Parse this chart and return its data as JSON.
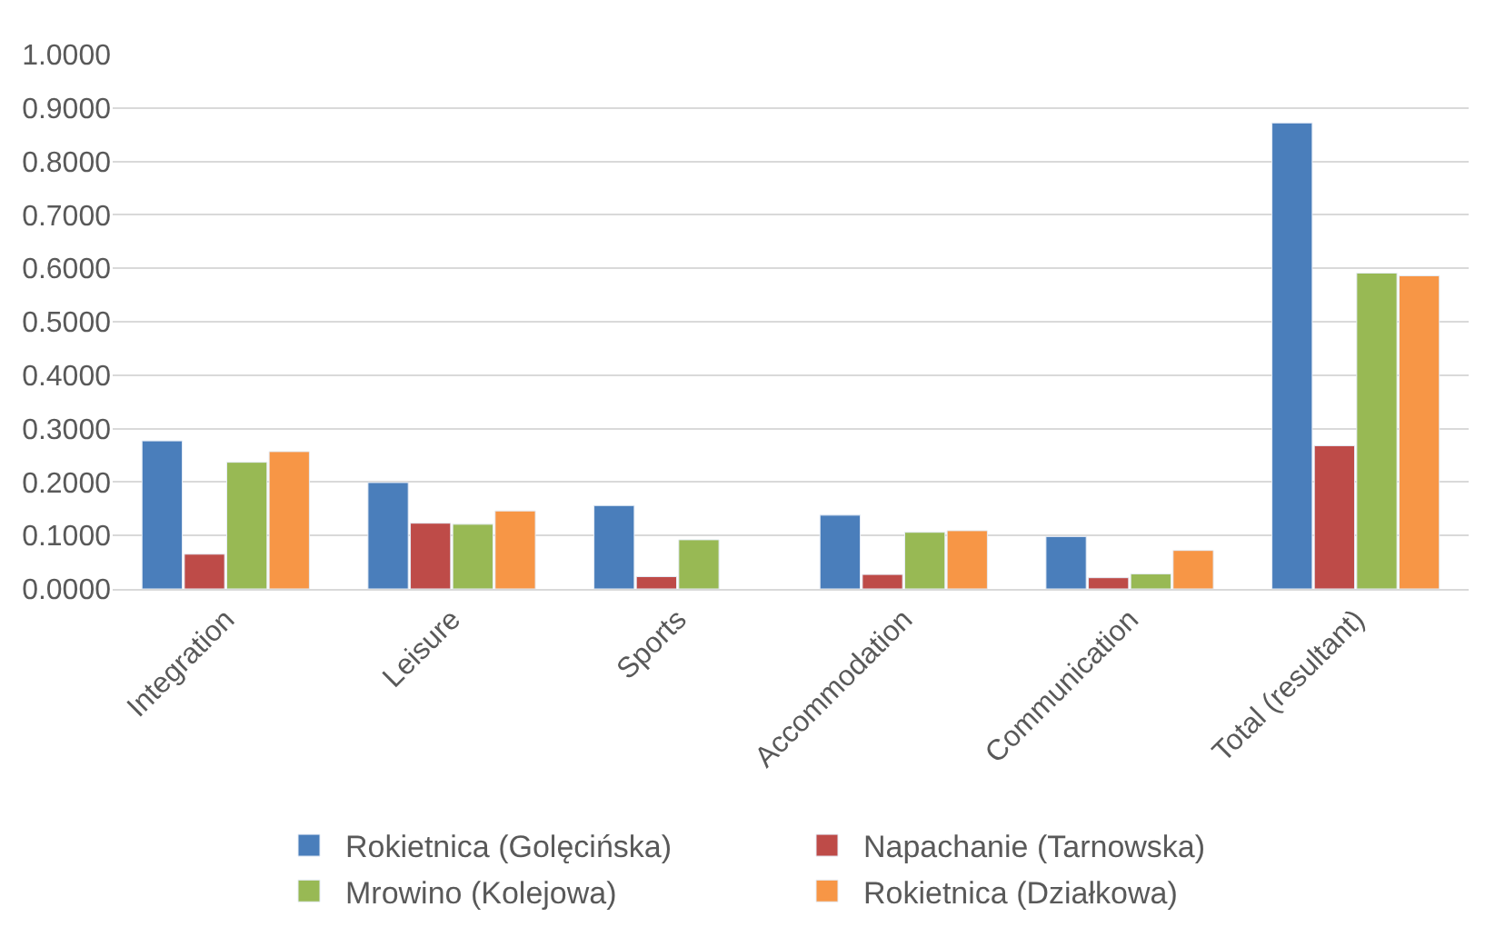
{
  "chart_data": {
    "type": "bar",
    "categories": [
      "Integration",
      "Leisure",
      "Sports",
      "Accommodation",
      "Communication",
      "Total (resultant)"
    ],
    "series": [
      {
        "name": "Rokietnica (Golęcińska)",
        "color": "#4a7ebb",
        "values": [
          0.277,
          0.199,
          0.156,
          0.138,
          0.098,
          0.872
        ]
      },
      {
        "name": "Napachanie (Tarnowska)",
        "color": "#be4b48",
        "values": [
          0.065,
          0.123,
          0.023,
          0.027,
          0.021,
          0.268
        ]
      },
      {
        "name": "Mrowino (Kolejowa)",
        "color": "#98b954",
        "values": [
          0.237,
          0.121,
          0.092,
          0.106,
          0.028,
          0.591
        ]
      },
      {
        "name": "Rokietnica (Działkowa)",
        "color": "#f79646",
        "values": [
          0.257,
          0.146,
          null,
          0.109,
          0.072,
          0.586
        ]
      }
    ],
    "ylim": [
      0,
      1
    ],
    "yticks": [
      {
        "value": 0,
        "label": "0.0000"
      },
      {
        "value": 0.1,
        "label": "0.1000"
      },
      {
        "value": 0.2,
        "label": "0.2000"
      },
      {
        "value": 0.3,
        "label": "0.3000"
      },
      {
        "value": 0.4,
        "label": "0.4000"
      },
      {
        "value": 0.5,
        "label": "0.5000"
      },
      {
        "value": 0.6,
        "label": "0.6000"
      },
      {
        "value": 0.7,
        "label": "0.7000"
      },
      {
        "value": 0.8,
        "label": "0.8000"
      },
      {
        "value": 0.9,
        "label": "0.9000"
      },
      {
        "value": 1,
        "label": "1.0000"
      }
    ],
    "grid": "y",
    "legend": "bottom"
  }
}
